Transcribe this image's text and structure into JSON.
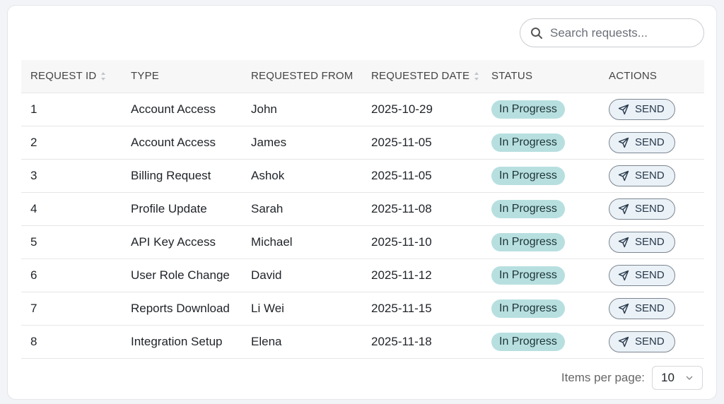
{
  "search": {
    "placeholder": "Search requests..."
  },
  "table": {
    "headers": [
      "REQUEST ID",
      "TYPE",
      "REQUESTED FROM",
      "REQUESTED DATE",
      "STATUS",
      "ACTIONS"
    ],
    "rows": [
      {
        "id": "1",
        "type": "Account Access",
        "from": "John",
        "date": "2025-10-29",
        "status": "In Progress",
        "action": "SEND"
      },
      {
        "id": "2",
        "type": "Account Access",
        "from": "James",
        "date": "2025-11-05",
        "status": "In Progress",
        "action": "SEND"
      },
      {
        "id": "3",
        "type": "Billing Request",
        "from": "Ashok",
        "date": "2025-11-05",
        "status": "In Progress",
        "action": "SEND"
      },
      {
        "id": "4",
        "type": "Profile Update",
        "from": "Sarah",
        "date": "2025-11-08",
        "status": "In Progress",
        "action": "SEND"
      },
      {
        "id": "5",
        "type": "API Key Access",
        "from": "Michael",
        "date": "2025-11-10",
        "status": "In Progress",
        "action": "SEND"
      },
      {
        "id": "6",
        "type": "User Role Change",
        "from": "David",
        "date": "2025-11-12",
        "status": "In Progress",
        "action": "SEND"
      },
      {
        "id": "7",
        "type": "Reports Download",
        "from": "Li Wei",
        "date": "2025-11-15",
        "status": "In Progress",
        "action": "SEND"
      },
      {
        "id": "8",
        "type": "Integration Setup",
        "from": "Elena",
        "date": "2025-11-18",
        "status": "In Progress",
        "action": "SEND"
      }
    ]
  },
  "footer": {
    "items_per_page_label": "Items per page:",
    "items_per_page_value": "10"
  },
  "colors": {
    "status_badge": "#b7dfe0",
    "send_button": "#eaf1f7"
  }
}
